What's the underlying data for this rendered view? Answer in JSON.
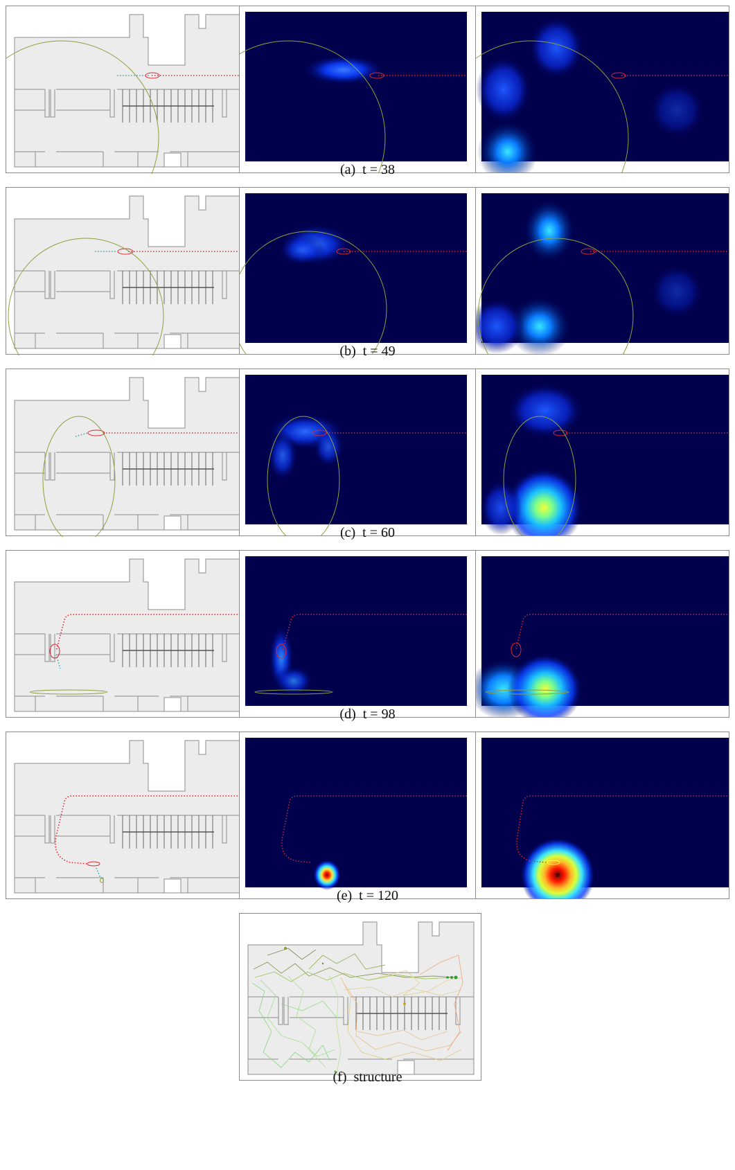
{
  "figure": {
    "rows": [
      {
        "caption": "(a)  t = 38"
      },
      {
        "caption": "(b)  t = 49"
      },
      {
        "caption": "(c)  t = 60"
      },
      {
        "caption": "(d)  t = 98"
      },
      {
        "caption": "(e)  t = 120"
      }
    ],
    "final_caption": "(f)  structure"
  },
  "colors": {
    "floor": "#ececec",
    "wall": "#8c8c8c",
    "trajectory": "#e0262f",
    "prediction": "#20b0b8",
    "ellipse": "#8ea040",
    "heat_bg": "#00004d"
  }
}
